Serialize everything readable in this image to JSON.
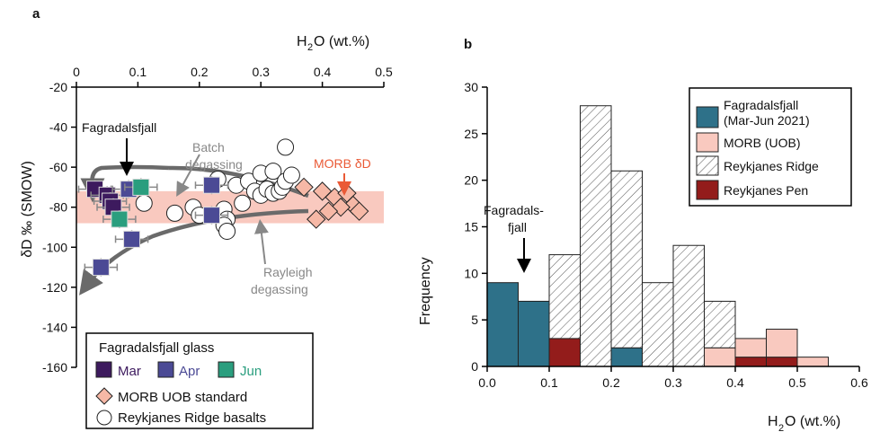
{
  "figure": {
    "panel_a_label": "a",
    "panel_b_label": "b"
  },
  "chart_data": [
    {
      "type": "scatter",
      "panel": "a",
      "xlabel_main": "H",
      "xlabel_sub": "2",
      "xlabel_rest": "O (wt.%)",
      "ylabel": "δD ‰ (SMOW)",
      "xlim": [
        0,
        0.5
      ],
      "ylim": [
        -160,
        -20
      ],
      "x_axis_position": "top",
      "xticks": [
        "0",
        "0.1",
        "0.2",
        "0.3",
        "0.4",
        "0.5"
      ],
      "yticks": [
        "-20",
        "-40",
        "-60",
        "-80",
        "-100",
        "-120",
        "-140",
        "-160"
      ],
      "xtick_values": [
        0,
        0.1,
        0.2,
        0.3,
        0.4,
        0.5
      ],
      "ytick_values": [
        -20,
        -40,
        -60,
        -80,
        -100,
        -120,
        -140,
        -160
      ],
      "morb_band": {
        "y_min": -88,
        "y_max": -72,
        "color": "#f9c9bf"
      },
      "series": [
        {
          "name": "Mar",
          "marker": "square",
          "color": "#3d1a5e",
          "points": [
            [
              0.03,
              -71
            ],
            [
              0.05,
              -74
            ],
            [
              0.055,
              -77
            ],
            [
              0.06,
              -80
            ]
          ]
        },
        {
          "name": "Apr",
          "marker": "square",
          "color": "#4b4a95",
          "points": [
            [
              0.085,
              -71
            ],
            [
              0.22,
              -69
            ],
            [
              0.22,
              -84
            ],
            [
              0.09,
              -96
            ],
            [
              0.04,
              -110
            ]
          ]
        },
        {
          "name": "Jun",
          "marker": "square",
          "color": "#2a9e7e",
          "points": [
            [
              0.105,
              -70
            ],
            [
              0.07,
              -86
            ]
          ]
        },
        {
          "name": "MORB UOB standard",
          "marker": "diamond",
          "color": "#f6b8a6",
          "points": [
            [
              0.37,
              -70
            ],
            [
              0.4,
              -72
            ],
            [
              0.42,
              -75
            ],
            [
              0.44,
              -73
            ],
            [
              0.45,
              -79
            ],
            [
              0.46,
              -82
            ],
            [
              0.43,
              -80
            ],
            [
              0.41,
              -82
            ],
            [
              0.39,
              -86
            ]
          ]
        },
        {
          "name": "Reykjanes Ridge basalts",
          "marker": "circle",
          "color": "#ffffff",
          "points": [
            [
              0.11,
              -78
            ],
            [
              0.16,
              -83
            ],
            [
              0.19,
              -80
            ],
            [
              0.2,
              -84
            ],
            [
              0.24,
              -81
            ],
            [
              0.245,
              -86
            ],
            [
              0.24,
              -89
            ],
            [
              0.245,
              -92
            ],
            [
              0.26,
              -69
            ],
            [
              0.28,
              -67
            ],
            [
              0.3,
              -63
            ],
            [
              0.32,
              -62
            ],
            [
              0.29,
              -72
            ],
            [
              0.3,
              -74
            ],
            [
              0.31,
              -71
            ],
            [
              0.32,
              -73
            ],
            [
              0.33,
              -72
            ],
            [
              0.335,
              -70
            ],
            [
              0.34,
              -67
            ],
            [
              0.35,
              -64
            ],
            [
              0.34,
              -50
            ],
            [
              0.23,
              -66
            ],
            [
              0.27,
              -78
            ]
          ]
        }
      ],
      "annotations": {
        "fagradalsfjall": "Fagradalsfjall",
        "batch_line1": "Batch",
        "batch_line2": "degassing",
        "morb_dd": "MORB δD",
        "rayleigh_line1": "Rayleigh",
        "rayleigh_line2": "degassing"
      },
      "legend": {
        "title": "Fagradalsfjall glass",
        "mar": "Mar",
        "apr": "Apr",
        "jun": "Jun",
        "morb": "MORB UOB standard",
        "rr": "Reykjanes Ridge basalts",
        "placement": "bottom-left"
      }
    },
    {
      "type": "bar",
      "panel": "b",
      "stacked_histogram": true,
      "xlabel_main": "H",
      "xlabel_sub": "2",
      "xlabel_rest": "O (wt.%)",
      "ylabel": "Frequency",
      "xlim": [
        0,
        0.6
      ],
      "ylim": [
        0,
        30
      ],
      "xticks": [
        "0.0",
        "0.1",
        "0.2",
        "0.3",
        "0.4",
        "0.5",
        "0.6"
      ],
      "yticks": [
        "0",
        "5",
        "10",
        "15",
        "20",
        "25",
        "30"
      ],
      "xtick_values": [
        0,
        0.1,
        0.2,
        0.3,
        0.4,
        0.5,
        0.6
      ],
      "ytick_values": [
        0,
        5,
        10,
        15,
        20,
        25,
        30
      ],
      "bin_width": 0.05,
      "series": [
        {
          "name": "Fagradalsfjall (Mar-Jun 2021)",
          "color": "#2e7189",
          "bins": [
            [
              0.0,
              9
            ],
            [
              0.05,
              7
            ],
            [
              0.2,
              2
            ]
          ]
        },
        {
          "name": "MORB (UOB)",
          "color": "#f9c9bf",
          "bins": [
            [
              0.35,
              2
            ],
            [
              0.4,
              2
            ],
            [
              0.45,
              3
            ],
            [
              0.5,
              1
            ]
          ]
        },
        {
          "name": "Reykjanes Ridge",
          "color": "hatch",
          "bins": [
            [
              0.1,
              9
            ],
            [
              0.15,
              28
            ],
            [
              0.2,
              19
            ],
            [
              0.25,
              9
            ],
            [
              0.3,
              13
            ],
            [
              0.35,
              5
            ]
          ]
        },
        {
          "name": "Reykjanes Pen",
          "color": "#931c1b",
          "bins": [
            [
              0.1,
              3
            ],
            [
              0.4,
              1
            ],
            [
              0.45,
              1
            ]
          ]
        }
      ],
      "annotations": {
        "fagradals_line1": "Fagradals-",
        "fagradals_line2": "fjall"
      },
      "legend": {
        "fag_line1": "Fagradalsfjall",
        "fag_line2": "(Mar-Jun 2021)",
        "morb": "MORB (UOB)",
        "rr": "Reykjanes Ridge",
        "rp": "Reykjanes Pen",
        "placement": "top-right"
      }
    }
  ]
}
